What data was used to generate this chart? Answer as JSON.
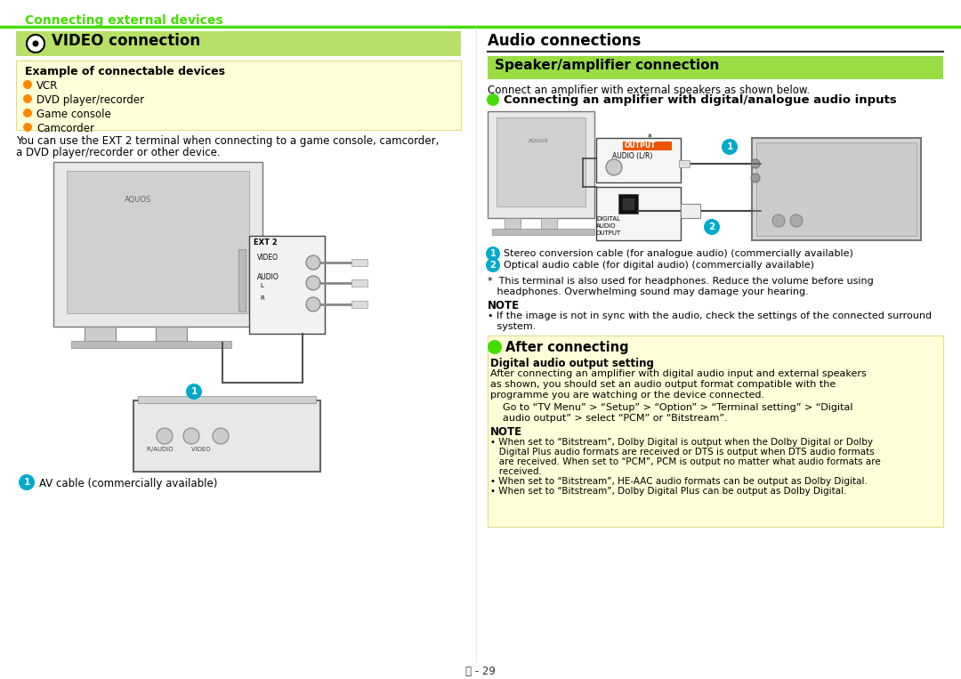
{
  "page_bg": "#ffffff",
  "bright_green": "#44dd00",
  "light_green_header": "#b8e068",
  "light_yellow_bg": "#fefed8",
  "yellow_border": "#dddd88",
  "orange_bullet": "#ff8800",
  "teal_circle_bg": "#00aacc",
  "section_green_bar": "#99dd44",
  "dark_line": "#222222",
  "page_title": "Connecting external devices",
  "left_title": "VIDEO connection",
  "right_title": "Audio connections",
  "speaker_title": "Speaker/amplifier connection",
  "example_box_title": "Example of connectable devices",
  "bullet_items": [
    "VCR",
    "DVD player/recorder",
    "Game console",
    "Camcorder"
  ],
  "ext_text1": "You can use the EXT 2 terminal when connecting to a game console, camcorder,",
  "ext_text2": "a DVD player/recorder or other device.",
  "av_label": "AV cable (commercially available)",
  "connect_desc": "Connect an amplifier with external speakers as shown below.",
  "connect_heading": "Connecting an amplifier with digital/analogue audio inputs",
  "legend1": "Stereo conversion cable (for analogue audio) (commercially available)",
  "legend2": "Optical audio cable (for digital audio) (commercially available)",
  "asterisk_line1": "*  This terminal is also used for headphones. Reduce the volume before using",
  "asterisk_line2": "   headphones. Overwhelming sound may damage your hearing.",
  "note1_body1": "• If the image is not in sync with the audio, check the settings of the connected surround",
  "note1_body2": "   system.",
  "after_title": "After connecting",
  "digital_setting_title": "Digital audio output setting",
  "digital_body1": "After connecting an amplifier with digital audio input and external speakers",
  "digital_body2": "as shown, you should set an audio output format compatible with the",
  "digital_body3": "programme you are watching or the device connected.",
  "go_line1": "Go to “TV Menu” > “Setup” > “Option” > “Terminal setting” > “Digital",
  "go_line2": "audio output” > select “PCM” or “Bitstream”.",
  "note2_b1a": "• When set to “Bitstream”, Dolby Digital is output when the Dolby Digital or Dolby",
  "note2_b1b": "   Digital Plus audio formats are received or DTS is output when DTS audio formats",
  "note2_b1c": "   are received. When set to “PCM”, PCM is output no matter what audio formats are",
  "note2_b1d": "   received.",
  "note2_b2": "• When set to “Bitstream”, HE-AAC audio formats can be output as Dolby Digital.",
  "note2_b3": "• When set to “Bitstream”, Dolby Digital Plus can be output as Dolby Digital.",
  "page_number": "Ⓐ - 29"
}
